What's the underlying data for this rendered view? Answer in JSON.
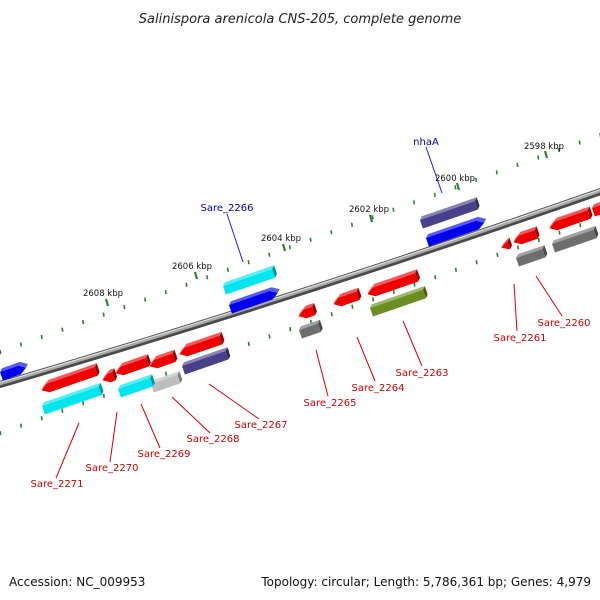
{
  "title": "Salinispora arenicola CNS-205, complete genome",
  "footer": {
    "accession": "Accession: NC_009953",
    "topology": "Topology: circular; Length: 5,786,361 bp; Genes: 4,979"
  },
  "colors": {
    "backbone": "#8a8a8a",
    "tick": "#2e7d32",
    "label_red": "#cc0000",
    "label_blue": "#0000b0",
    "red": "#ee0000",
    "cyan": "#00e5ee",
    "blue": "#0000ee",
    "navy": "#48408a",
    "gray": "#6e6e6e",
    "lightgray": "#bdbdbd",
    "olive": "#6b8e23"
  },
  "ticks": [
    {
      "label": "2598 kbp"
    },
    {
      "label": "2600 kbp"
    },
    {
      "label": "2602 kbp"
    },
    {
      "label": "2604 kbp"
    },
    {
      "label": "2606 kbp"
    },
    {
      "label": "2608 kbp"
    }
  ],
  "genes": [
    {
      "name": "Sare_2260",
      "color": "red"
    },
    {
      "name": "Sare_2261",
      "color": "red"
    },
    {
      "name": "Sare_2263",
      "color": "olive"
    },
    {
      "name": "Sare_2264",
      "color": "red"
    },
    {
      "name": "Sare_2265",
      "color": "gray"
    },
    {
      "name": "Sare_2267",
      "color": "navy"
    },
    {
      "name": "Sare_2268",
      "color": "lightgray"
    },
    {
      "name": "Sare_2269",
      "color": "cyan"
    },
    {
      "name": "Sare_2270",
      "color": "red"
    },
    {
      "name": "Sare_2271",
      "color": "cyan"
    },
    {
      "name": "nhaA",
      "color": "blue"
    },
    {
      "name": "Sare_2266",
      "color": "cyan"
    }
  ]
}
